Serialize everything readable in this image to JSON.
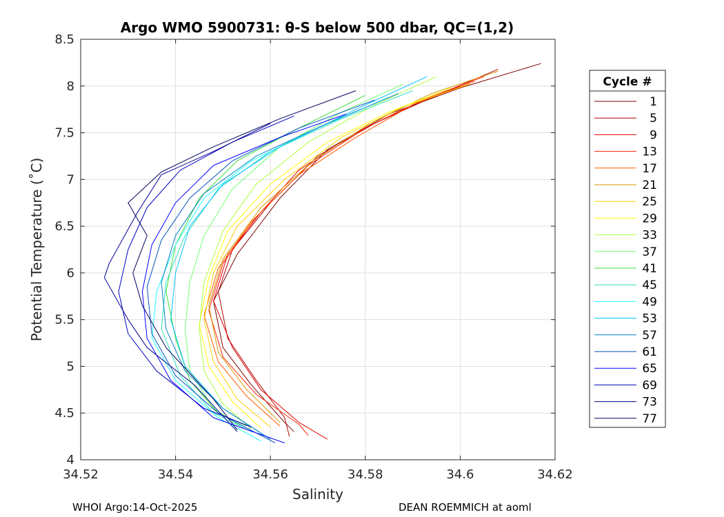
{
  "chart_data": {
    "type": "line",
    "title": "Argo WMO 5900731: θ-S below 500 dbar,  QC=(1,2)",
    "xlabel": "Salinity",
    "ylabel": "Potential Temperature (˚C)",
    "xlim": [
      34.52,
      34.62
    ],
    "ylim": [
      4,
      8.5
    ],
    "xticks": [
      "34.52",
      "34.54",
      "34.56",
      "34.58",
      "34.6",
      "34.62"
    ],
    "yticks": [
      "4",
      "4.5",
      "5",
      "5.5",
      "6",
      "6.5",
      "7",
      "7.5",
      "8",
      "8.5"
    ],
    "grid": true,
    "legend": {
      "title": "Cycle #",
      "placement": "right-outside",
      "entries": [
        "1",
        "5",
        "9",
        "13",
        "17",
        "21",
        "25",
        "29",
        "33",
        "37",
        "41",
        "45",
        "49",
        "53",
        "57",
        "61",
        "65",
        "69",
        "73",
        "77"
      ],
      "colors": [
        "#7f0000",
        "#b00000",
        "#e00000",
        "#ff2000",
        "#ff5a00",
        "#d59500",
        "#ffd000",
        "#ffff00",
        "#b0ff40",
        "#70ff70",
        "#38e038",
        "#30e0c0",
        "#20ffff",
        "#00c0ff",
        "#0080c0",
        "#0050c0",
        "#0000ff",
        "#0000c0",
        "#000090",
        "#000060"
      ]
    },
    "series": [
      {
        "name": "1",
        "color": "#7f0000",
        "points": [
          [
            34.617,
            8.24
          ],
          [
            34.6,
            7.98
          ],
          [
            34.585,
            7.7
          ],
          [
            34.572,
            7.32
          ],
          [
            34.562,
            6.8
          ],
          [
            34.553,
            6.2
          ],
          [
            34.548,
            5.7
          ],
          [
            34.55,
            5.2
          ],
          [
            34.556,
            4.8
          ],
          [
            34.563,
            4.4
          ],
          [
            34.565,
            4.3
          ]
        ]
      },
      {
        "name": "5",
        "color": "#b00000",
        "points": [
          [
            34.608,
            8.18
          ],
          [
            34.595,
            7.9
          ],
          [
            34.582,
            7.6
          ],
          [
            34.57,
            7.25
          ],
          [
            34.56,
            6.75
          ],
          [
            34.552,
            6.25
          ],
          [
            34.549,
            5.8
          ],
          [
            34.551,
            5.3
          ],
          [
            34.557,
            4.85
          ],
          [
            34.563,
            4.45
          ],
          [
            34.564,
            4.25
          ]
        ]
      },
      {
        "name": "9",
        "color": "#e00000",
        "points": [
          [
            34.6,
            8.0
          ],
          [
            34.59,
            7.8
          ],
          [
            34.578,
            7.5
          ],
          [
            34.566,
            7.1
          ],
          [
            34.558,
            6.65
          ],
          [
            34.551,
            6.2
          ],
          [
            34.548,
            5.7
          ],
          [
            34.552,
            5.2
          ],
          [
            34.558,
            4.75
          ],
          [
            34.566,
            4.4
          ],
          [
            34.572,
            4.22
          ]
        ]
      },
      {
        "name": "13",
        "color": "#ff2000",
        "points": [
          [
            34.605,
            8.1
          ],
          [
            34.592,
            7.85
          ],
          [
            34.58,
            7.55
          ],
          [
            34.568,
            7.15
          ],
          [
            34.557,
            6.6
          ],
          [
            34.55,
            6.1
          ],
          [
            34.547,
            5.6
          ],
          [
            34.55,
            5.1
          ],
          [
            34.557,
            4.7
          ],
          [
            34.566,
            4.38
          ],
          [
            34.568,
            4.26
          ]
        ]
      },
      {
        "name": "17",
        "color": "#ff5a00",
        "points": [
          [
            34.603,
            8.05
          ],
          [
            34.59,
            7.8
          ],
          [
            34.578,
            7.45
          ],
          [
            34.566,
            7.05
          ],
          [
            34.556,
            6.55
          ],
          [
            34.549,
            6.05
          ],
          [
            34.546,
            5.55
          ],
          [
            34.549,
            5.05
          ],
          [
            34.555,
            4.68
          ],
          [
            34.562,
            4.36
          ]
        ]
      },
      {
        "name": "21",
        "color": "#d59500",
        "points": [
          [
            34.608,
            8.16
          ],
          [
            34.594,
            7.92
          ],
          [
            34.581,
            7.6
          ],
          [
            34.569,
            7.2
          ],
          [
            34.558,
            6.7
          ],
          [
            34.55,
            6.15
          ],
          [
            34.547,
            5.65
          ],
          [
            34.549,
            5.15
          ],
          [
            34.555,
            4.75
          ],
          [
            34.562,
            4.4
          ]
        ]
      },
      {
        "name": "25",
        "color": "#ffd000",
        "points": [
          [
            34.602,
            8.02
          ],
          [
            34.588,
            7.78
          ],
          [
            34.575,
            7.45
          ],
          [
            34.563,
            7.0
          ],
          [
            34.553,
            6.5
          ],
          [
            34.548,
            6.0
          ],
          [
            34.546,
            5.5
          ],
          [
            34.548,
            5.05
          ],
          [
            34.553,
            4.65
          ],
          [
            34.56,
            4.35
          ]
        ]
      },
      {
        "name": "29",
        "color": "#ffff00",
        "points": [
          [
            34.598,
            7.98
          ],
          [
            34.585,
            7.72
          ],
          [
            34.572,
            7.4
          ],
          [
            34.56,
            6.95
          ],
          [
            34.551,
            6.45
          ],
          [
            34.547,
            5.95
          ],
          [
            34.545,
            5.45
          ],
          [
            34.547,
            5.0
          ],
          [
            34.552,
            4.62
          ],
          [
            34.558,
            4.34
          ]
        ]
      },
      {
        "name": "33",
        "color": "#b0ff40",
        "points": [
          [
            34.595,
            8.1
          ],
          [
            34.582,
            7.8
          ],
          [
            34.568,
            7.4
          ],
          [
            34.557,
            6.95
          ],
          [
            34.55,
            6.45
          ],
          [
            34.546,
            5.9
          ],
          [
            34.545,
            5.4
          ],
          [
            34.546,
            4.95
          ],
          [
            34.55,
            4.6
          ],
          [
            34.556,
            4.33
          ]
        ]
      },
      {
        "name": "37",
        "color": "#70ff70",
        "points": [
          [
            34.588,
            8.02
          ],
          [
            34.575,
            7.72
          ],
          [
            34.562,
            7.35
          ],
          [
            34.552,
            6.9
          ],
          [
            34.546,
            6.4
          ],
          [
            34.543,
            5.9
          ],
          [
            34.542,
            5.4
          ],
          [
            34.543,
            4.95
          ],
          [
            34.548,
            4.55
          ],
          [
            34.554,
            4.35
          ]
        ]
      },
      {
        "name": "41",
        "color": "#38e038",
        "points": [
          [
            34.58,
            7.9
          ],
          [
            34.566,
            7.55
          ],
          [
            34.553,
            7.2
          ],
          [
            34.545,
            6.8
          ],
          [
            34.54,
            6.3
          ],
          [
            34.538,
            5.8
          ],
          [
            34.54,
            5.3
          ],
          [
            34.543,
            4.85
          ],
          [
            34.549,
            4.5
          ],
          [
            34.555,
            4.36
          ]
        ]
      },
      {
        "name": "45",
        "color": "#30e0c0",
        "points": [
          [
            34.59,
            7.95
          ],
          [
            34.575,
            7.65
          ],
          [
            34.56,
            7.3
          ],
          [
            34.549,
            6.9
          ],
          [
            34.542,
            6.4
          ],
          [
            34.538,
            5.9
          ],
          [
            34.537,
            5.4
          ],
          [
            34.541,
            4.9
          ],
          [
            34.548,
            4.5
          ],
          [
            34.556,
            4.3
          ]
        ]
      },
      {
        "name": "49",
        "color": "#20ffff",
        "points": [
          [
            34.585,
            7.88
          ],
          [
            34.57,
            7.55
          ],
          [
            34.556,
            7.2
          ],
          [
            34.546,
            6.8
          ],
          [
            34.54,
            6.3
          ],
          [
            34.536,
            5.8
          ],
          [
            34.535,
            5.3
          ],
          [
            34.54,
            4.85
          ],
          [
            34.549,
            4.45
          ],
          [
            34.558,
            4.2
          ]
        ]
      },
      {
        "name": "53",
        "color": "#00c0ff",
        "points": [
          [
            34.593,
            8.1
          ],
          [
            34.578,
            7.75
          ],
          [
            34.562,
            7.35
          ],
          [
            34.55,
            6.95
          ],
          [
            34.543,
            6.5
          ],
          [
            34.54,
            6.0
          ],
          [
            34.539,
            5.5
          ],
          [
            34.542,
            5.0
          ],
          [
            34.55,
            4.55
          ],
          [
            34.559,
            4.25
          ]
        ]
      },
      {
        "name": "57",
        "color": "#0080c0",
        "points": [
          [
            34.587,
            7.92
          ],
          [
            34.572,
            7.6
          ],
          [
            34.557,
            7.25
          ],
          [
            34.546,
            6.85
          ],
          [
            34.54,
            6.4
          ],
          [
            34.537,
            5.9
          ],
          [
            34.538,
            5.4
          ],
          [
            34.542,
            4.95
          ],
          [
            34.55,
            4.55
          ],
          [
            34.56,
            4.22
          ]
        ]
      },
      {
        "name": "61",
        "color": "#0050c0",
        "points": [
          [
            34.582,
            7.85
          ],
          [
            34.566,
            7.55
          ],
          [
            34.552,
            7.2
          ],
          [
            34.543,
            6.8
          ],
          [
            34.537,
            6.35
          ],
          [
            34.534,
            5.85
          ],
          [
            34.535,
            5.35
          ],
          [
            34.54,
            4.9
          ],
          [
            34.549,
            4.5
          ],
          [
            34.561,
            4.18
          ]
        ]
      },
      {
        "name": "65",
        "color": "#0000ff",
        "points": [
          [
            34.576,
            7.7
          ],
          [
            34.562,
            7.45
          ],
          [
            34.548,
            7.15
          ],
          [
            34.54,
            6.75
          ],
          [
            34.535,
            6.3
          ],
          [
            34.533,
            5.8
          ],
          [
            34.534,
            5.3
          ],
          [
            34.539,
            4.85
          ],
          [
            34.548,
            4.45
          ],
          [
            34.563,
            4.18
          ]
        ]
      },
      {
        "name": "69",
        "color": "#0000c0",
        "points": [
          [
            34.565,
            7.68
          ],
          [
            34.552,
            7.4
          ],
          [
            34.541,
            7.1
          ],
          [
            34.534,
            6.7
          ],
          [
            34.53,
            6.25
          ],
          [
            34.528,
            5.8
          ],
          [
            34.53,
            5.35
          ],
          [
            34.536,
            4.95
          ],
          [
            34.546,
            4.55
          ],
          [
            34.556,
            4.35
          ]
        ]
      },
      {
        "name": "73",
        "color": "#000090",
        "points": [
          [
            34.56,
            7.6
          ],
          [
            34.548,
            7.3
          ],
          [
            34.537,
            7.05
          ],
          [
            34.532,
            6.65
          ],
          [
            34.526,
            6.1
          ],
          [
            34.525,
            5.95
          ],
          [
            34.53,
            5.5
          ],
          [
            34.534,
            5.2
          ],
          [
            34.544,
            4.8
          ],
          [
            34.553,
            4.3
          ]
        ]
      },
      {
        "name": "77",
        "color": "#000060",
        "points": [
          [
            34.578,
            7.95
          ],
          [
            34.562,
            7.65
          ],
          [
            34.548,
            7.35
          ],
          [
            34.537,
            7.08
          ],
          [
            34.53,
            6.75
          ],
          [
            34.534,
            6.4
          ],
          [
            34.531,
            6.0
          ],
          [
            34.533,
            5.65
          ],
          [
            34.538,
            5.2
          ],
          [
            34.548,
            4.65
          ],
          [
            34.553,
            4.32
          ]
        ]
      }
    ]
  },
  "footer": {
    "left": "WHOI Argo:14-Oct-2025",
    "right": "DEAN ROEMMICH at aoml"
  }
}
